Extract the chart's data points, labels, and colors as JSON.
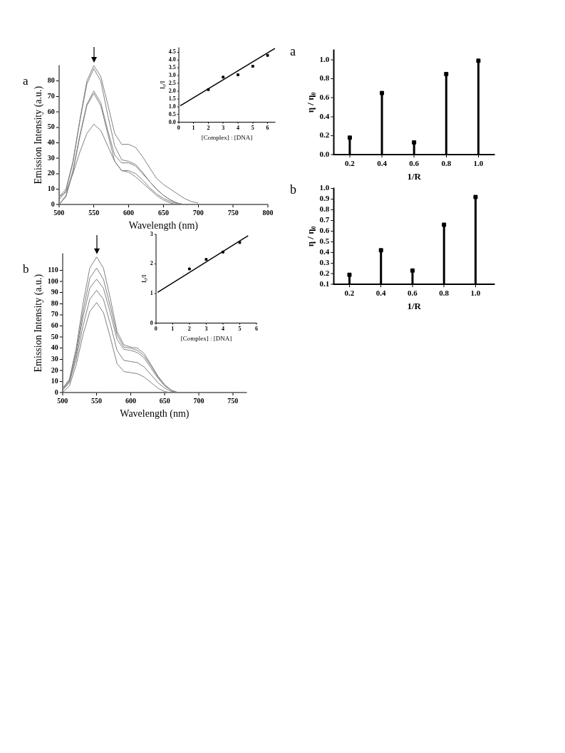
{
  "chart_data": [
    {
      "type": "line",
      "annotations": [
        "a"
      ],
      "xlabel": "Wavelength (nm)",
      "ylabel": "Emission Intensity (a.u.)",
      "x": [
        500,
        510,
        520,
        530,
        540,
        550,
        560,
        570,
        580,
        590,
        600,
        610,
        620,
        630,
        640,
        650,
        660,
        670,
        680,
        690,
        700
      ],
      "xlim": [
        500,
        800
      ],
      "xticks": [
        500,
        550,
        600,
        650,
        700,
        750,
        800
      ],
      "ylim": [
        0,
        90
      ],
      "yticks": [
        0,
        10,
        20,
        30,
        40,
        50,
        60,
        70,
        80
      ],
      "marker": "none",
      "series": [
        {
          "color": "#808080",
          "values": [
            5,
            10,
            28,
            55,
            80,
            90,
            83,
            65,
            46,
            39,
            39,
            37,
            31,
            24,
            17,
            13,
            10,
            7,
            4,
            2,
            1
          ]
        },
        {
          "color": "#808080",
          "values": [
            3,
            9,
            27,
            54,
            78,
            88,
            80,
            58,
            38,
            29,
            28,
            26,
            21,
            15,
            10,
            6,
            3,
            1,
            0,
            0,
            0
          ]
        },
        {
          "color": "#808080",
          "values": [
            0,
            6,
            22,
            45,
            65,
            73.5,
            66,
            48,
            32,
            27,
            27,
            25,
            20,
            15,
            10,
            6,
            3,
            1,
            0,
            0,
            0
          ]
        },
        {
          "color": "#808080",
          "values": [
            0,
            5,
            21,
            44,
            64,
            72,
            64,
            46,
            28,
            22,
            22,
            20,
            16,
            11,
            7,
            4,
            2,
            0.5,
            0,
            0,
            0
          ]
        },
        {
          "color": "#808080",
          "values": [
            5,
            8,
            20,
            34,
            46,
            52,
            48,
            38,
            28,
            22,
            21,
            18,
            14,
            10,
            6,
            3,
            1,
            0,
            0,
            0,
            0
          ]
        }
      ]
    },
    {
      "type": "scatter",
      "xlabel": "[Complex] : [DNA]",
      "ylabel": "I₀/I",
      "xlim": [
        0,
        6.5
      ],
      "xticks": [
        0,
        1,
        2,
        3,
        4,
        5,
        6
      ],
      "ylim": [
        0,
        4.8
      ],
      "yticks": [
        {
          "value": 0,
          "label": "0.0"
        },
        {
          "value": 0.5,
          "label": "0.5"
        },
        {
          "value": 1,
          "label": "1.0"
        },
        {
          "value": 1.5,
          "label": "1.5"
        },
        {
          "value": 2,
          "label": "2.0"
        },
        {
          "value": 2.5,
          "label": "2.5"
        },
        {
          "value": 3,
          "label": "3.0"
        },
        {
          "value": 3.5,
          "label": "3.5"
        },
        {
          "value": 4,
          "label": "4.0"
        },
        {
          "value": 4.5,
          "label": "4.5"
        }
      ],
      "series": [
        {
          "type": "scatter",
          "marker": "square",
          "color": "#000000",
          "x": [
            2,
            3,
            4,
            5,
            6
          ],
          "values": [
            2.1,
            2.9,
            3.05,
            3.6,
            4.3
          ]
        },
        {
          "type": "line",
          "marker": "none",
          "color": "#000000",
          "x": [
            0.1,
            6.5
          ],
          "values": [
            1.06,
            4.75
          ]
        }
      ]
    },
    {
      "type": "line",
      "annotations": [
        "b"
      ],
      "xlabel": "Wavelength (nm)",
      "ylabel": "Emission Intensity (a.u.)",
      "x": [
        500,
        510,
        520,
        530,
        540,
        550,
        560,
        570,
        580,
        590,
        600,
        610,
        620,
        630,
        640,
        650,
        660,
        670,
        680
      ],
      "xlim": [
        500,
        770
      ],
      "xticks": [
        500,
        550,
        600,
        650,
        700,
        750
      ],
      "ylim": [
        0,
        125
      ],
      "yticks": [
        0,
        10,
        20,
        30,
        40,
        50,
        60,
        70,
        80,
        90,
        100,
        110
      ],
      "marker": "none",
      "series": [
        {
          "color": "#808080",
          "values": [
            4,
            12,
            40,
            80,
            112,
            122,
            112,
            85,
            55,
            43,
            41,
            40,
            35,
            25,
            15,
            7,
            2,
            0,
            0
          ]
        },
        {
          "color": "#808080",
          "values": [
            3,
            11,
            37,
            73,
            103,
            112,
            102,
            78,
            52,
            41,
            40,
            38,
            33,
            24,
            14,
            7,
            2,
            0,
            0
          ]
        },
        {
          "color": "#808080",
          "values": [
            3,
            10,
            34,
            68,
            94,
            102,
            94,
            72,
            48,
            39,
            38,
            36,
            31,
            22,
            13,
            6,
            2,
            0,
            0
          ]
        },
        {
          "color": "#808080",
          "values": [
            2,
            9,
            30,
            60,
            84,
            92,
            84,
            62,
            38,
            29,
            28,
            27,
            23,
            16,
            9,
            4,
            1,
            0,
            0
          ]
        },
        {
          "color": "#808080",
          "values": [
            0,
            6,
            25,
            52,
            73,
            81,
            72,
            50,
            26,
            19,
            18,
            17,
            14,
            9,
            4,
            1,
            0,
            0,
            0
          ]
        }
      ]
    },
    {
      "type": "scatter",
      "xlabel": "[Complex] : [DNA]",
      "ylabel": "I₀/I",
      "xlim": [
        0,
        6
      ],
      "xticks": [
        0,
        1,
        2,
        3,
        4,
        5,
        6
      ],
      "ylim": [
        0,
        3
      ],
      "yticks": [
        0,
        1,
        2,
        3
      ],
      "series": [
        {
          "type": "scatter",
          "marker": "square",
          "color": "#000000",
          "x": [
            2,
            3,
            4,
            5
          ],
          "values": [
            1.83,
            2.15,
            2.4,
            2.72
          ]
        },
        {
          "type": "line",
          "marker": "none",
          "color": "#000000",
          "x": [
            0.1,
            5.5
          ],
          "values": [
            1.04,
            2.95
          ]
        }
      ]
    },
    {
      "type": "lollipop",
      "annotations": [
        "a"
      ],
      "xlabel": "1/R",
      "ylabel": "η / η₀",
      "x": [
        0.2,
        0.4,
        0.6,
        0.8,
        1.0
      ],
      "values": [
        0.18,
        0.65,
        0.13,
        0.85,
        0.99
      ],
      "color": "#000000",
      "marker": "square",
      "xlim": [
        0.1,
        1.1
      ],
      "xticks": [
        {
          "value": 0.2,
          "label": "0.2"
        },
        {
          "value": 0.4,
          "label": "0.4"
        },
        {
          "value": 0.6,
          "label": "0.6"
        },
        {
          "value": 0.8,
          "label": "0.8"
        },
        {
          "value": 1,
          "label": "1.0"
        }
      ],
      "ylim": [
        0,
        1.1
      ],
      "yticks": [
        {
          "value": 0,
          "label": "0.0"
        },
        {
          "value": 0.2,
          "label": "0.2"
        },
        {
          "value": 0.4,
          "label": "0.4"
        },
        {
          "value": 0.6,
          "label": "0.6"
        },
        {
          "value": 0.8,
          "label": "0.8"
        },
        {
          "value": 1,
          "label": "1.0"
        }
      ]
    },
    {
      "type": "lollipop",
      "annotations": [
        "b"
      ],
      "xlabel": "1/R",
      "ylabel": "η / η₀",
      "x": [
        0.2,
        0.4,
        0.6,
        0.8,
        1.0
      ],
      "values": [
        0.19,
        0.42,
        0.23,
        0.66,
        0.92
      ],
      "color": "#000000",
      "marker": "square",
      "xlim": [
        0.1,
        1.12
      ],
      "xticks": [
        {
          "value": 0.2,
          "label": "0.2"
        },
        {
          "value": 0.4,
          "label": "0.4"
        },
        {
          "value": 0.6,
          "label": "0.6"
        },
        {
          "value": 0.8,
          "label": "0.8"
        },
        {
          "value": 1,
          "label": "1.0"
        }
      ],
      "ylim": [
        0.1,
        1.0
      ],
      "yticks": [
        {
          "value": 0.1,
          "label": "0.1"
        },
        {
          "value": 0.2,
          "label": "0.2"
        },
        {
          "value": 0.3,
          "label": "0.3"
        },
        {
          "value": 0.4,
          "label": "0.4"
        },
        {
          "value": 0.5,
          "label": "0.5"
        },
        {
          "value": 0.6,
          "label": "0.6"
        },
        {
          "value": 0.7,
          "label": "0.7"
        },
        {
          "value": 0.8,
          "label": "0.8"
        },
        {
          "value": 0.9,
          "label": "0.9"
        },
        {
          "value": 1,
          "label": "1.0"
        }
      ]
    }
  ]
}
